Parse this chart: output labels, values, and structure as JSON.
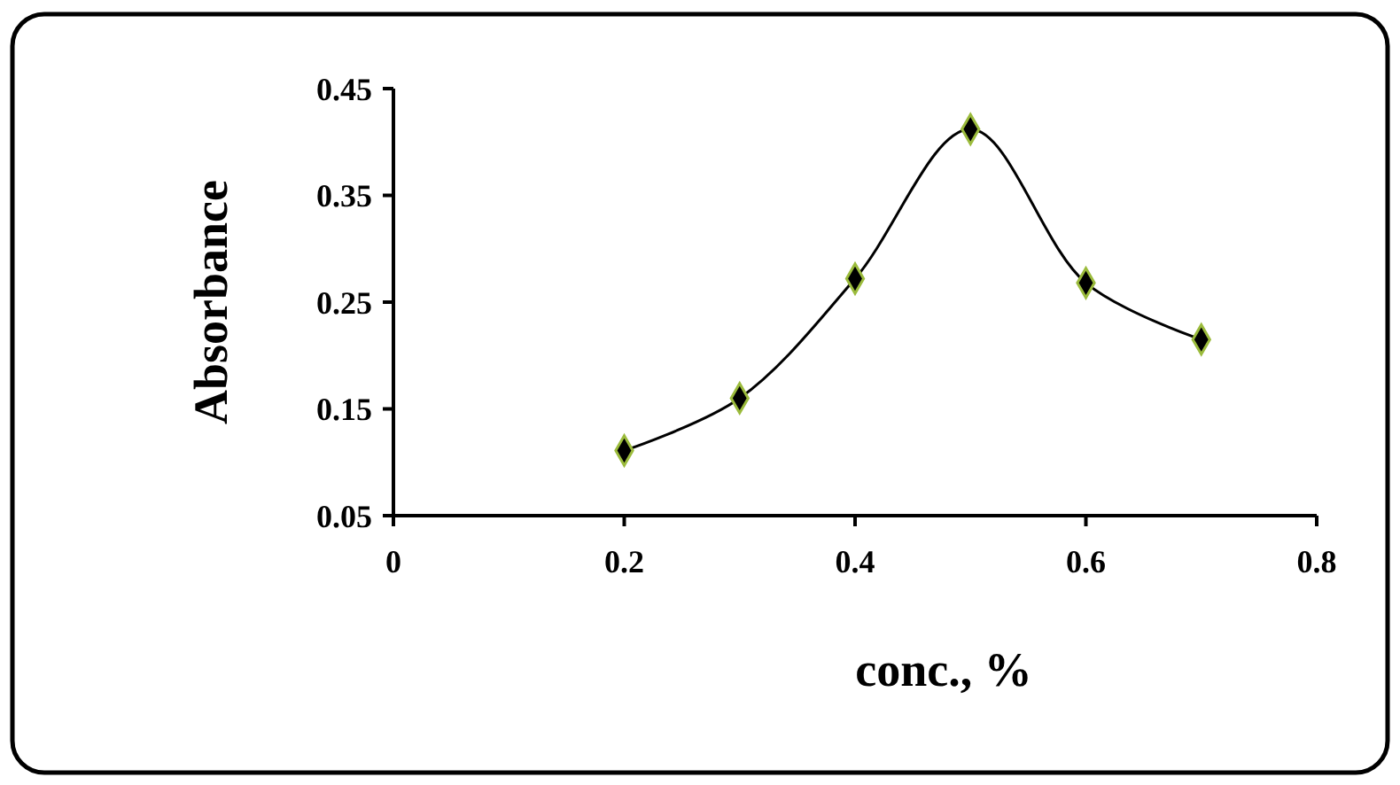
{
  "chart_data": {
    "type": "line",
    "xlabel": "conc., %",
    "ylabel": "Absorbance",
    "x": [
      0.2,
      0.3,
      0.4,
      0.5,
      0.6,
      0.7
    ],
    "series": [
      {
        "color": "#000000",
        "values": [
          0.111,
          0.16,
          0.272,
          0.412,
          0.268,
          0.215
        ]
      }
    ],
    "xlim": [
      0,
      0.8
    ],
    "xticks": [
      0,
      0.2,
      0.4,
      0.6,
      0.8
    ],
    "ylim": [
      0.05,
      0.45
    ],
    "yticks": [
      0.05,
      0.15,
      0.25,
      0.35,
      0.45
    ],
    "marker": "diamond",
    "line_style": "solid"
  }
}
